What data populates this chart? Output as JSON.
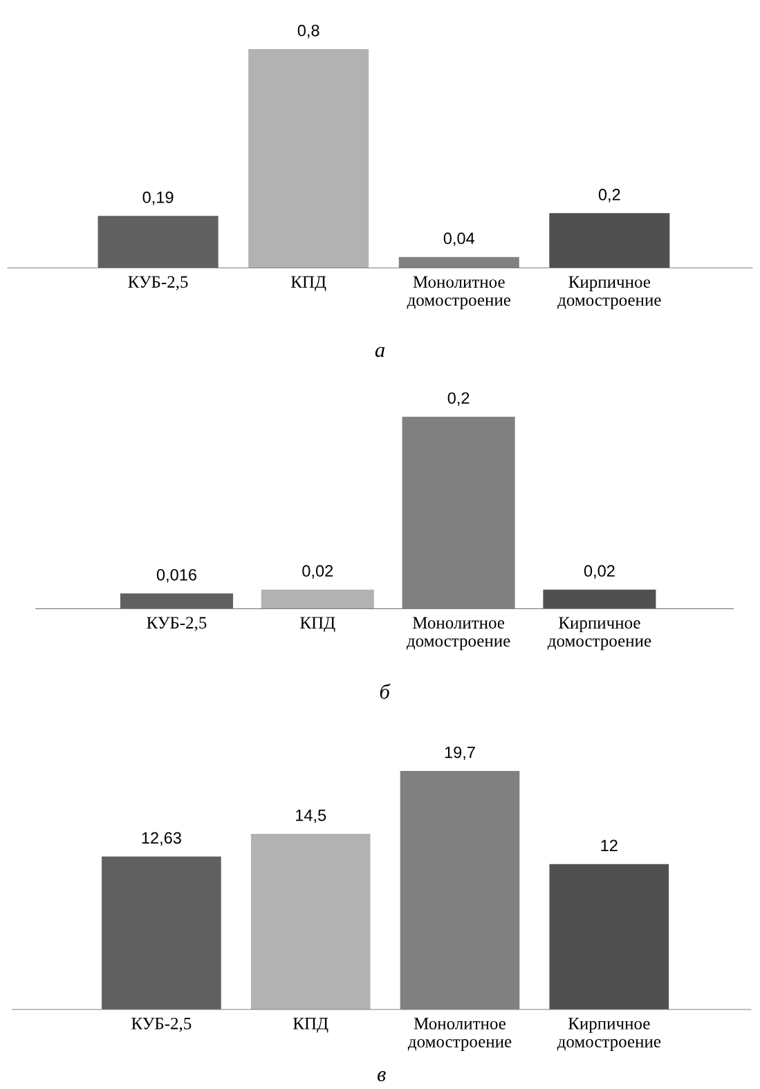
{
  "chart_data": [
    {
      "type": "bar",
      "title": "а",
      "categories": [
        "КУБ-2,5",
        "КПД",
        "Монолитное\nдомостроение",
        "Кирпичное\nдомостроение"
      ],
      "values": [
        0.19,
        0.8,
        0.04,
        0.2
      ],
      "value_labels": [
        "0,19",
        "0,8",
        "0,04",
        "0,2"
      ],
      "colors": [
        "#606060",
        "#b2b2b2",
        "#808080",
        "#505050"
      ],
      "grid": false,
      "legend": false
    },
    {
      "type": "bar",
      "title": "б",
      "categories": [
        "КУБ-2,5",
        "КПД",
        "Монолитное\nдомостроение",
        "Кирпичное\nдомостроение"
      ],
      "values": [
        0.016,
        0.02,
        0.2,
        0.02
      ],
      "value_labels": [
        "0,016",
        "0,02",
        "0,2",
        "0,02"
      ],
      "colors": [
        "#606060",
        "#b2b2b2",
        "#808080",
        "#505050"
      ],
      "grid": false,
      "legend": false
    },
    {
      "type": "bar",
      "title": "в",
      "categories": [
        "КУБ-2,5",
        "КПД",
        "Монолитное\nдомостроение",
        "Кирпичное\nдомостроение"
      ],
      "values": [
        12.63,
        14.5,
        19.7,
        12
      ],
      "value_labels": [
        "12,63",
        "14,5",
        "19,7",
        "12"
      ],
      "colors": [
        "#606060",
        "#b2b2b2",
        "#808080",
        "#505050"
      ],
      "grid": false,
      "legend": false
    }
  ]
}
